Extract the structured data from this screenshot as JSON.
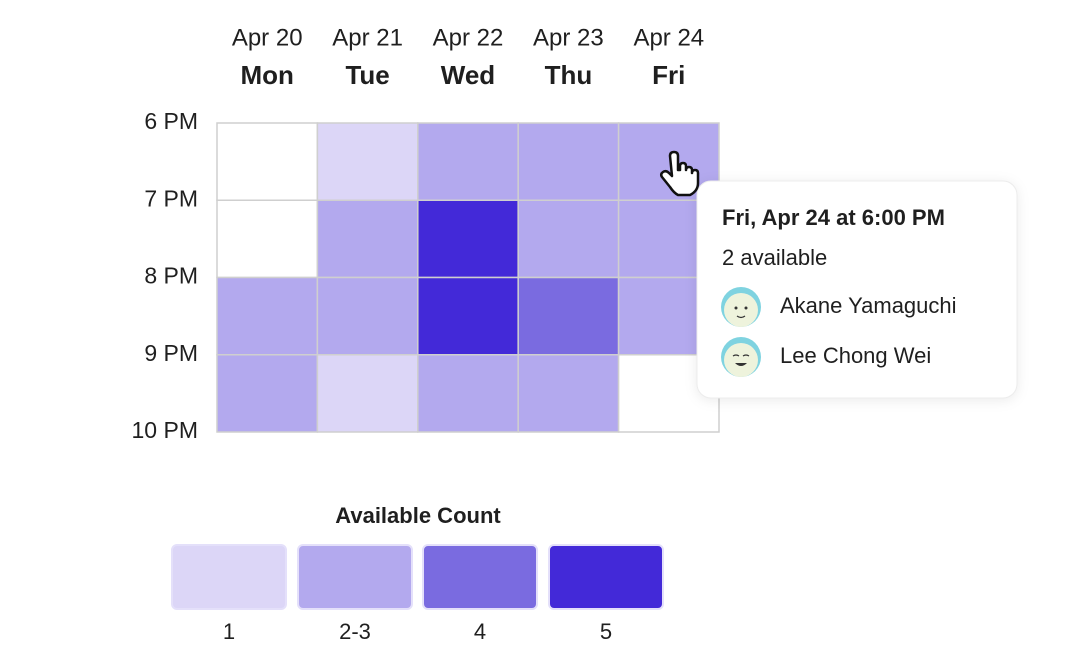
{
  "days": [
    {
      "date": "Apr 20",
      "day": "Mon"
    },
    {
      "date": "Apr 21",
      "day": "Tue"
    },
    {
      "date": "Apr 22",
      "day": "Wed"
    },
    {
      "date": "Apr 23",
      "day": "Thu"
    },
    {
      "date": "Apr 24",
      "day": "Fri"
    }
  ],
  "times": [
    "6 PM",
    "7 PM",
    "8 PM",
    "9 PM",
    "10 PM"
  ],
  "cells": [
    [
      0,
      1,
      2,
      2,
      2
    ],
    [
      0,
      2,
      5,
      2,
      2
    ],
    [
      2,
      2,
      5,
      4,
      2
    ],
    [
      2,
      1,
      2,
      2,
      0
    ]
  ],
  "legend": {
    "title": "Available Count",
    "items": [
      {
        "label": "1",
        "min": 1,
        "max": 1,
        "color": "#dcd6f7"
      },
      {
        "label": "2-3",
        "min": 2,
        "max": 3,
        "color": "#b3a9ee"
      },
      {
        "label": "4",
        "min": 4,
        "max": 4,
        "color": "#7a6be0"
      },
      {
        "label": "5",
        "min": 5,
        "max": 5,
        "color": "#4329d8"
      }
    ]
  },
  "tooltip": {
    "title": "Fri, Apr 24 at 6:00 PM",
    "subtitle": "2 available",
    "people": [
      "Akane Yamaguchi",
      "Lee Chong Wei"
    ]
  }
}
